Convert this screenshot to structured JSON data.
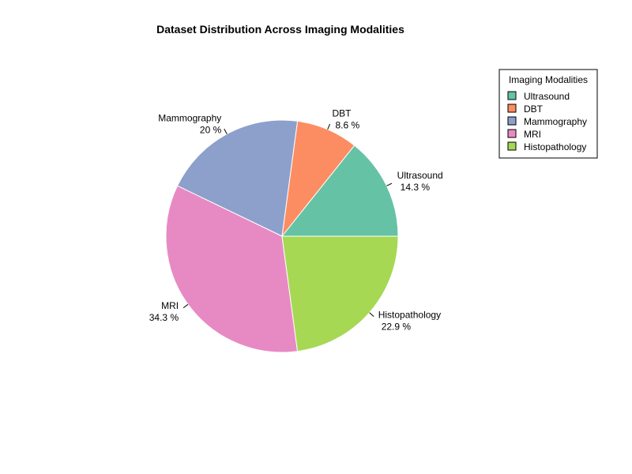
{
  "chart_data": {
    "type": "pie",
    "title": "Dataset Distribution Across Imaging Modalities",
    "categories": [
      "Ultrasound",
      "DBT",
      "Mammography",
      "MRI",
      "Histopathology"
    ],
    "values": [
      14.3,
      8.6,
      20,
      34.3,
      22.9
    ],
    "value_labels": [
      "14.3 %",
      "8.6 %",
      "20 %",
      "34.3 %",
      "22.9 %"
    ],
    "colors": [
      "#66C2A5",
      "#FC8D62",
      "#8DA0CB",
      "#E78AC3",
      "#A6D854"
    ],
    "direction": "counterclockwise",
    "start": "3 o'clock",
    "legend": {
      "title": "Imaging Modalities",
      "position": "top-right",
      "items": [
        "Ultrasound",
        "DBT",
        "Mammography",
        "MRI",
        "Histopathology"
      ]
    }
  }
}
